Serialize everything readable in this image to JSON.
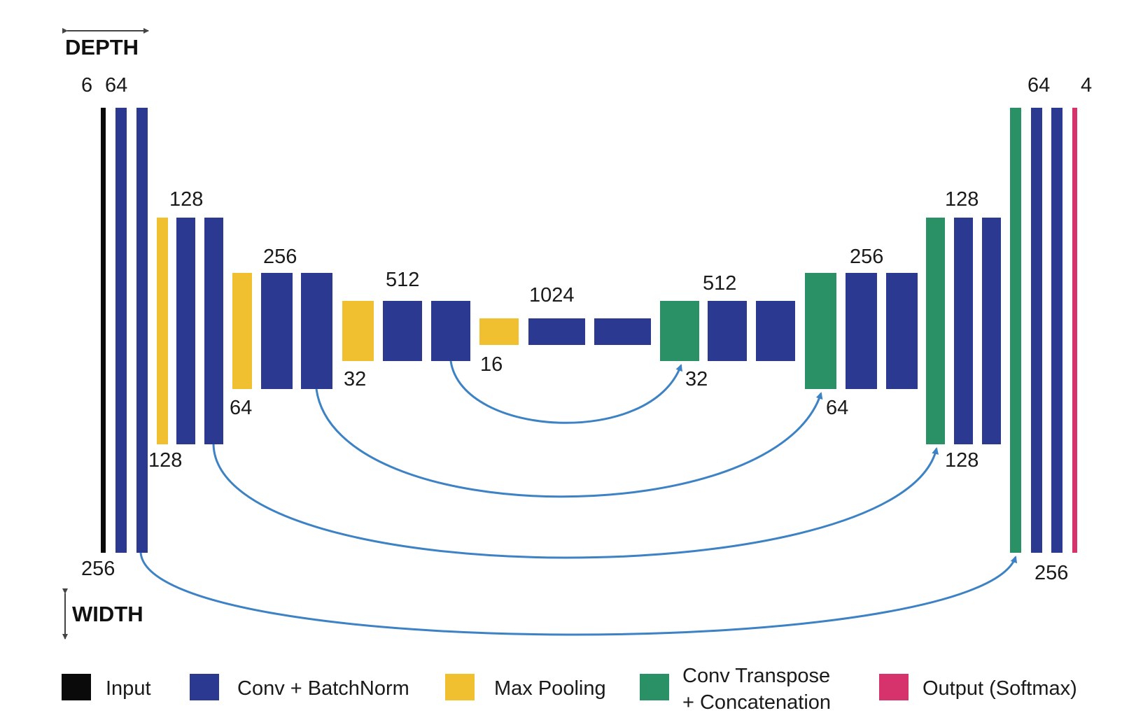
{
  "colors": {
    "input": "#0a0a0a",
    "conv": "#2b3990",
    "pool": "#f0c030",
    "transpose": "#2a9166",
    "output": "#d6336c",
    "skip_arrow": "#3d82c4",
    "axis_arrow": "#444444"
  },
  "axes": {
    "depth_label": "DEPTH",
    "width_label": "WIDTH"
  },
  "layer_labels": {
    "l1_depth_in": "6",
    "l1_depth": "64",
    "l1_width": "256",
    "l2_depth": "128",
    "l2_width": "128",
    "l3_depth": "256",
    "l3_width": "64",
    "l4_depth": "512",
    "l4_width": "32",
    "l5_depth": "1024",
    "l5_width": "16",
    "r4_depth": "512",
    "r4_width": "32",
    "r3_depth": "256",
    "r3_width": "64",
    "r2_depth": "128",
    "r2_width": "128",
    "r1_depth": "64",
    "r1_depth_out": "4",
    "r1_width": "256"
  },
  "legend": [
    {
      "key": "input",
      "label": "Input",
      "color": "#0a0a0a"
    },
    {
      "key": "conv",
      "label": "Conv + BatchNorm",
      "color": "#2b3990"
    },
    {
      "key": "pool",
      "label": "Max Pooling",
      "color": "#f0c030"
    },
    {
      "key": "transpose",
      "label_line1": "Conv Transpose",
      "label_line2": "+  Concatenation",
      "color": "#2a9166"
    },
    {
      "key": "output",
      "label": "Output (Softmax)",
      "color": "#d6336c"
    }
  ]
}
